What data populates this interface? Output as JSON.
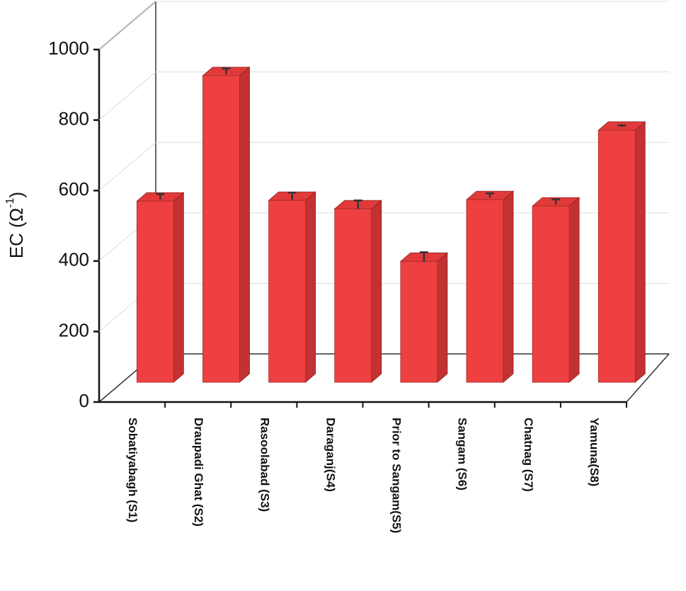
{
  "chart_data": {
    "type": "bar3d",
    "y_label": {
      "text": "EC (Ω",
      "superscript": "-1",
      "suffix": ")"
    },
    "categories": [
      "Sobatiyabagh (S1)",
      "Draupadi Ghat (S2)",
      "Rasoolabad (S3)",
      "Daraganj(S4)",
      "Prior to Sangam(S5)",
      "Sangam (S6)",
      "Chatnag (S7)",
      "Yamuna(S8)"
    ],
    "values": [
      514,
      870,
      516,
      492,
      343,
      518,
      500,
      715
    ],
    "errors": [
      8,
      8,
      10,
      12,
      14,
      6,
      7,
      2
    ],
    "color": "#ee4040",
    "ylim": [
      0,
      1000
    ],
    "yticks": [
      0,
      200,
      400,
      600,
      800,
      1000
    ],
    "grid": true
  }
}
